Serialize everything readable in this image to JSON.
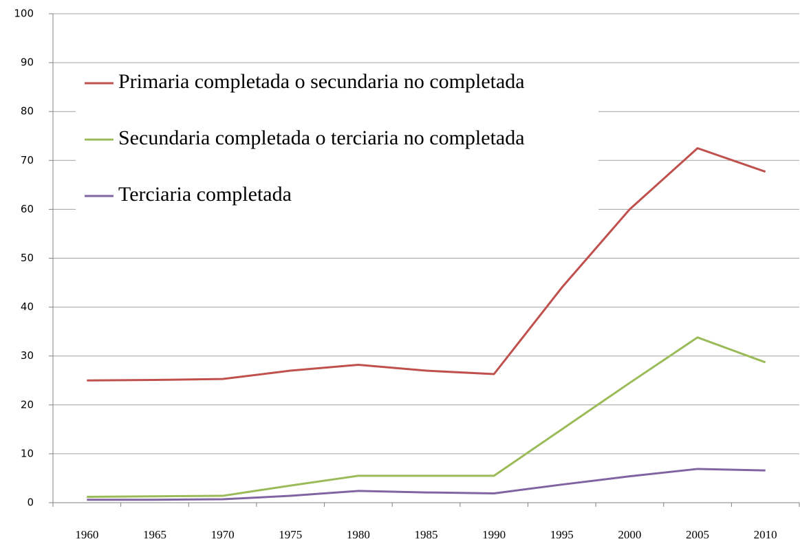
{
  "chart_data": {
    "type": "line",
    "categories": [
      "1960",
      "1965",
      "1970",
      "1975",
      "1980",
      "1985",
      "1990",
      "1995",
      "2000",
      "2005",
      "2010"
    ],
    "series": [
      {
        "name": "Primaria completada o secundaria no completada",
        "color": "#c0504d",
        "values": [
          25,
          25.1,
          25.3,
          27,
          28.2,
          27,
          26.3,
          44,
          60,
          72.5,
          67.7
        ]
      },
      {
        "name": "Secundaria completada o terciaria no completada",
        "color": "#9bbb59",
        "values": [
          1.2,
          1.3,
          1.4,
          3.5,
          5.5,
          5.5,
          5.5,
          15,
          24.5,
          33.8,
          28.7
        ]
      },
      {
        "name": "Terciaria completada",
        "color": "#8064a2",
        "values": [
          0.6,
          0.6,
          0.7,
          1.4,
          2.4,
          2.1,
          1.9,
          3.7,
          5.4,
          6.9,
          6.6
        ]
      }
    ],
    "ylim": [
      0,
      100
    ],
    "yticks": [
      0,
      10,
      20,
      30,
      40,
      50,
      60,
      70,
      80,
      90,
      100
    ],
    "grid": true,
    "legend": "upper left"
  }
}
